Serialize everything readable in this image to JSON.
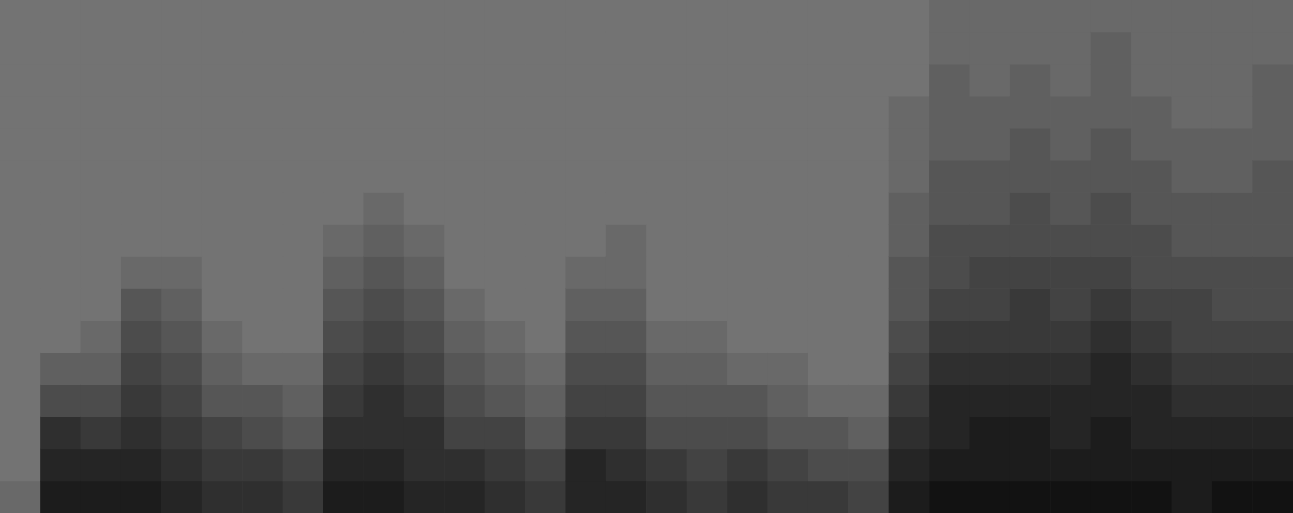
{
  "chart_data": {
    "type": "heatmap",
    "tick_labels": false,
    "grid": false,
    "colors": [
      "#737373",
      "#121212"
    ],
    "zlim": [
      0,
      10
    ],
    "cells": [
      [
        1,
        0,
        0,
        0,
        0,
        0,
        0,
        0,
        0,
        0,
        0,
        0,
        0,
        0,
        0,
        0
      ],
      [
        9,
        8,
        7,
        4,
        2,
        0,
        0,
        0,
        0,
        0,
        0,
        0,
        0,
        0,
        0,
        0
      ],
      [
        9,
        8,
        6,
        4,
        2,
        1,
        0,
        0,
        0,
        0,
        0,
        0,
        0,
        0,
        0,
        0
      ],
      [
        9,
        8,
        7,
        6,
        5,
        4,
        3,
        1,
        0,
        0,
        0,
        0,
        0,
        0,
        0,
        0
      ],
      [
        8,
        7,
        6,
        5,
        4,
        3,
        2,
        1,
        0,
        0,
        0,
        0,
        0,
        0,
        0,
        0
      ],
      [
        7,
        6,
        5,
        3,
        2,
        1,
        0,
        0,
        0,
        0,
        0,
        0,
        0,
        0,
        0,
        0
      ],
      [
        7,
        6,
        4,
        3,
        1,
        0,
        0,
        0,
        0,
        0,
        0,
        0,
        0,
        0,
        0,
        0
      ],
      [
        6,
        5,
        3,
        2,
        1,
        0,
        0,
        0,
        0,
        0,
        0,
        0,
        0,
        0,
        0,
        0
      ],
      [
        9,
        8,
        7,
        6,
        5,
        4,
        3,
        2,
        1,
        0,
        0,
        0,
        0,
        0,
        0,
        0
      ],
      [
        9,
        8,
        7,
        7,
        6,
        5,
        4,
        3,
        2,
        1,
        0,
        0,
        0,
        0,
        0,
        0
      ],
      [
        8,
        7,
        7,
        6,
        5,
        4,
        3,
        2,
        1,
        0,
        0,
        0,
        0,
        0,
        0,
        0
      ],
      [
        8,
        7,
        5,
        4,
        3,
        2,
        1,
        0,
        0,
        0,
        0,
        0,
        0,
        0,
        0,
        0
      ],
      [
        7,
        6,
        5,
        3,
        2,
        1,
        0,
        0,
        0,
        0,
        0,
        0,
        0,
        0,
        0,
        0
      ],
      [
        6,
        5,
        3,
        2,
        1,
        0,
        0,
        0,
        0,
        0,
        0,
        0,
        0,
        0,
        0,
        0
      ],
      [
        8,
        8,
        6,
        5,
        4,
        3,
        2,
        1,
        0,
        0,
        0,
        0,
        0,
        0,
        0,
        0
      ],
      [
        8,
        7,
        6,
        5,
        4,
        3,
        2,
        1,
        1,
        0,
        0,
        0,
        0,
        0,
        0,
        0
      ],
      [
        7,
        6,
        4,
        3,
        2,
        1,
        0,
        0,
        0,
        0,
        0,
        0,
        0,
        0,
        0,
        0
      ],
      [
        6,
        5,
        4,
        3,
        2,
        1,
        0,
        0,
        0,
        0,
        0,
        0,
        0,
        0,
        0,
        0
      ],
      [
        7,
        6,
        4,
        3,
        1,
        0,
        0,
        0,
        0,
        0,
        0,
        0,
        0,
        0,
        0,
        0
      ],
      [
        6,
        5,
        3,
        2,
        1,
        0,
        0,
        0,
        0,
        0,
        0,
        0,
        0,
        0,
        0,
        0
      ],
      [
        6,
        4,
        3,
        1,
        0,
        0,
        0,
        0,
        0,
        0,
        0,
        0,
        0,
        0,
        0,
        0
      ],
      [
        5,
        4,
        2,
        1,
        0,
        0,
        0,
        0,
        0,
        0,
        0,
        0,
        0,
        0,
        0,
        0
      ],
      [
        9,
        8,
        7,
        6,
        5,
        4,
        3,
        3,
        2,
        2,
        1,
        1,
        1,
        0,
        0,
        0
      ],
      [
        10,
        9,
        8,
        8,
        7,
        6,
        5,
        4,
        4,
        3,
        3,
        2,
        2,
        2,
        1,
        1
      ],
      [
        10,
        9,
        9,
        8,
        7,
        6,
        5,
        5,
        4,
        3,
        3,
        2,
        2,
        1,
        1,
        1
      ],
      [
        10,
        9,
        9,
        8,
        7,
        6,
        6,
        5,
        4,
        4,
        3,
        3,
        2,
        2,
        1,
        1
      ],
      [
        10,
        9,
        8,
        8,
        7,
        6,
        5,
        5,
        4,
        3,
        3,
        2,
        2,
        1,
        1,
        1
      ],
      [
        10,
        9,
        9,
        8,
        8,
        7,
        6,
        5,
        4,
        4,
        3,
        3,
        2,
        2,
        2,
        1
      ],
      [
        10,
        9,
        8,
        8,
        7,
        6,
        5,
        4,
        4,
        3,
        3,
        2,
        2,
        1,
        1,
        1
      ],
      [
        9,
        9,
        8,
        7,
        6,
        5,
        5,
        4,
        3,
        3,
        2,
        2,
        1,
        1,
        1,
        1
      ],
      [
        10,
        9,
        8,
        7,
        6,
        5,
        4,
        4,
        3,
        3,
        2,
        2,
        1,
        1,
        1,
        1
      ],
      [
        10,
        9,
        8,
        7,
        6,
        5,
        4,
        4,
        3,
        3,
        3,
        2,
        2,
        2,
        1,
        1
      ]
    ]
  }
}
